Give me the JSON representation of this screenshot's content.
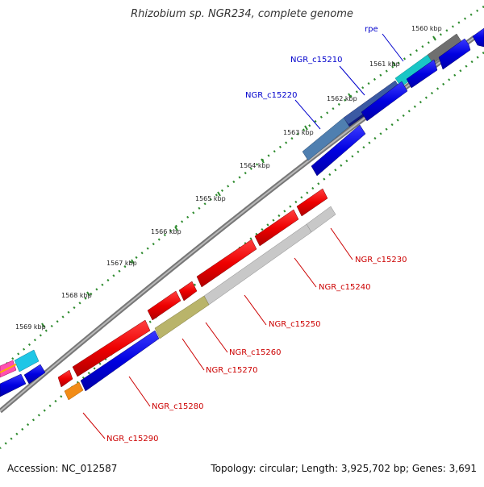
{
  "title": "Rhizobium sp. NGR234, complete genome",
  "footer": {
    "accession": "Accession: NC_012587",
    "summary": "Topology: circular; Length: 3,925,702 bp; Genes: 3,691"
  },
  "ruler_labels": [
    "1560 kbp",
    "1561 kbp",
    "1562 kbp",
    "1563 kbp",
    "1564 kbp",
    "1565 kbp",
    "1566 kbp",
    "1567 kbp",
    "1568 kbp",
    "1569 kbp"
  ],
  "genes": {
    "rpe": "rpe",
    "c15210": "NGR_c15210",
    "c15220": "NGR_c15220",
    "c15230": "NGR_c15230",
    "c15240": "NGR_c15240",
    "c15250": "NGR_c15250",
    "c15260": "NGR_c15260",
    "c15270": "NGR_c15270",
    "c15280": "NGR_c15280",
    "c15290": "NGR_c15290"
  },
  "colors": {
    "forward_label": "#0000cc",
    "reverse_label": "#cc0000",
    "backbone": "#777777",
    "tick": "#2e8b2e"
  }
}
